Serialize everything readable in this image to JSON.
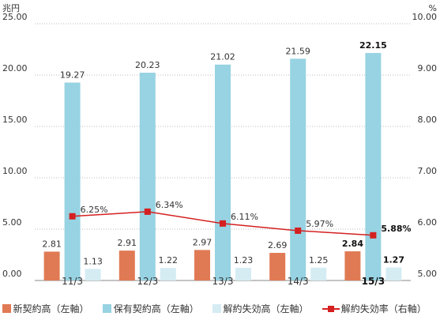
{
  "units": {
    "left": "兆円",
    "right": "%"
  },
  "colors": {
    "new": "#e07a54",
    "held": "#97d3e2",
    "lapse": "#d5ecf3",
    "rate": "#d42020",
    "grid": "#bbbbbb"
  },
  "chart_data": {
    "type": "bar",
    "categories": [
      "11/3",
      "12/3",
      "13/3",
      "14/3",
      "15/3"
    ],
    "highlight_category_index": 4,
    "left_axis": {
      "ylim": [
        0,
        25
      ],
      "ticks": [
        "0.00",
        "5.00",
        "10.00",
        "15.00",
        "20.00",
        "25.00"
      ],
      "unit": "兆円"
    },
    "right_axis": {
      "ylim": [
        5,
        10
      ],
      "ticks": [
        "5.00",
        "6.00",
        "7.00",
        "8.00",
        "9.00",
        "10.00"
      ],
      "unit": "%"
    },
    "series": [
      {
        "name": "新契約高（左軸）",
        "type": "bar",
        "axis": "left",
        "color": "#e07a54",
        "values": [
          2.81,
          2.91,
          2.97,
          2.69,
          2.84
        ],
        "labels": [
          "2.81",
          "2.91",
          "2.97",
          "2.69",
          "2.84"
        ]
      },
      {
        "name": "保有契約高（左軸）",
        "type": "bar",
        "axis": "left",
        "color": "#97d3e2",
        "values": [
          19.27,
          20.23,
          21.02,
          21.59,
          22.15
        ],
        "labels": [
          "19.27",
          "20.23",
          "21.02",
          "21.59",
          "22.15"
        ]
      },
      {
        "name": "解約失効高（左軸）",
        "type": "bar",
        "axis": "left",
        "color": "#d5ecf3",
        "values": [
          1.13,
          1.22,
          1.23,
          1.25,
          1.27
        ],
        "labels": [
          "1.13",
          "1.22",
          "1.23",
          "1.25",
          "1.27"
        ]
      },
      {
        "name": "解約失効率（右軸）",
        "type": "line",
        "axis": "right",
        "color": "#d42020",
        "values": [
          6.25,
          6.34,
          6.11,
          5.97,
          5.88
        ],
        "labels": [
          "6.25%",
          "6.34%",
          "6.11%",
          "5.97%",
          "5.88%"
        ]
      }
    ],
    "grid": true,
    "legend_position": "bottom"
  }
}
